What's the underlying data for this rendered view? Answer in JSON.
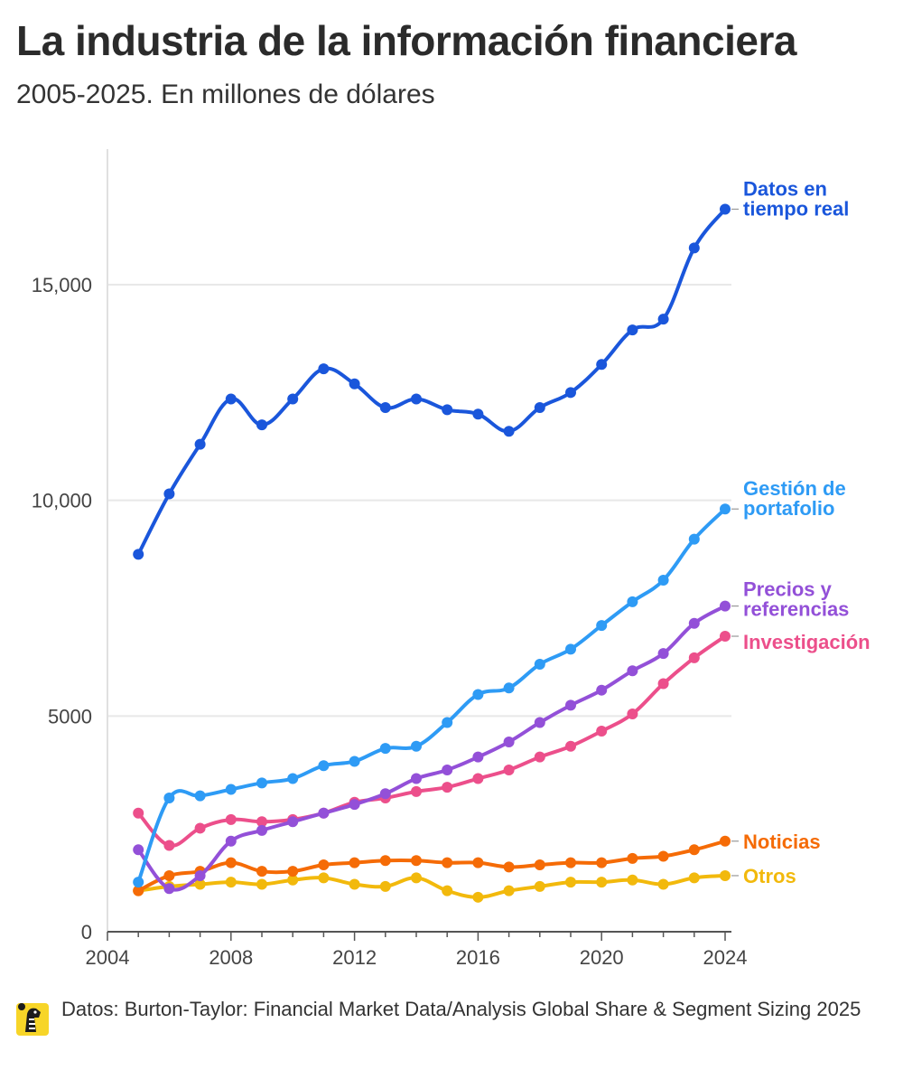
{
  "title": "La industria de la información financiera",
  "subtitle": "2005-2025. En millones de dólares",
  "source": "Datos: Burton-Taylor: Financial Market Data/Analysis Global Share & Segment Sizing 2025",
  "chart_data": {
    "type": "line",
    "title": "La industria de la información financiera",
    "subtitle": "2005-2025. En millones de dólares",
    "xlabel": "",
    "ylabel": "",
    "xlim": [
      2004,
      2024.3
    ],
    "ylim": [
      0,
      18000
    ],
    "x_ticks": [
      2004,
      2008,
      2012,
      2016,
      2020,
      2024
    ],
    "y_ticks": [
      0,
      5000,
      10000,
      15000
    ],
    "y_tick_labels": [
      "0",
      "5000",
      "10,000",
      "15,000"
    ],
    "grid": "horizontal",
    "legend": "labels at line ends",
    "x": [
      2005,
      2006,
      2007,
      2008,
      2009,
      2010,
      2011,
      2012,
      2013,
      2014,
      2015,
      2016,
      2017,
      2018,
      2019,
      2020,
      2021,
      2022,
      2023,
      2024
    ],
    "series": [
      {
        "name": "Datos en tiempo real",
        "label_lines": [
          "Datos en",
          "tiempo real"
        ],
        "color": "#1a56db",
        "values": [
          8750,
          10150,
          11300,
          12350,
          11750,
          12350,
          13050,
          12700,
          12150,
          12350,
          12100,
          12000,
          11600,
          12150,
          12500,
          13150,
          13950,
          14200,
          15850,
          16750
        ]
      },
      {
        "name": "Gestión de portafolio",
        "label_lines": [
          "Gestión de",
          "portafolio"
        ],
        "color": "#2e9bf5",
        "values": [
          1150,
          3100,
          3150,
          3300,
          3450,
          3550,
          3850,
          3950,
          4250,
          4300,
          4850,
          5500,
          5650,
          6200,
          6550,
          7100,
          7650,
          8150,
          9100,
          9800
        ]
      },
      {
        "name": "Precios y referencias",
        "label_lines": [
          "Precios y",
          "referencias"
        ],
        "color": "#9350d8",
        "values": [
          1900,
          1000,
          1300,
          2100,
          2350,
          2550,
          2750,
          2950,
          3200,
          3550,
          3750,
          4050,
          4400,
          4850,
          5250,
          5600,
          6050,
          6450,
          7150,
          7550
        ]
      },
      {
        "name": "Investigación",
        "label_lines": [
          "Investigación"
        ],
        "color": "#ec4f8b",
        "values": [
          2750,
          2000,
          2400,
          2600,
          2550,
          2600,
          2750,
          3000,
          3100,
          3250,
          3350,
          3550,
          3750,
          4050,
          4300,
          4650,
          5050,
          5750,
          6350,
          6850
        ]
      },
      {
        "name": "Noticias",
        "label_lines": [
          "Noticias"
        ],
        "color": "#f56b06",
        "values": [
          950,
          1300,
          1400,
          1600,
          1400,
          1400,
          1550,
          1600,
          1650,
          1650,
          1600,
          1600,
          1500,
          1550,
          1600,
          1600,
          1700,
          1750,
          1900,
          2100
        ]
      },
      {
        "name": "Otros",
        "label_lines": [
          "Otros"
        ],
        "color": "#f2b90c",
        "values": [
          950,
          1050,
          1100,
          1150,
          1100,
          1200,
          1250,
          1100,
          1050,
          1250,
          950,
          800,
          950,
          1050,
          1150,
          1150,
          1200,
          1100,
          1250,
          1300
        ]
      }
    ]
  }
}
